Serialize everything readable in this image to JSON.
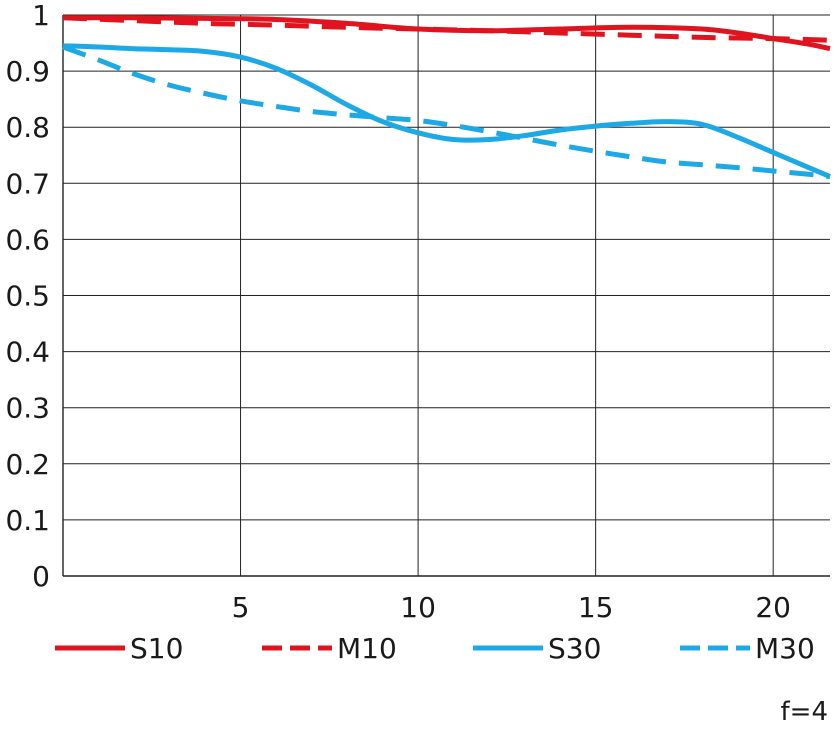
{
  "chart_data": {
    "type": "line",
    "xlim": [
      0,
      21.6
    ],
    "ylim": [
      0,
      1
    ],
    "x_ticks": [
      5,
      10,
      15,
      20
    ],
    "y_ticks": [
      0,
      0.1,
      0.2,
      0.3,
      0.4,
      0.5,
      0.6,
      0.7,
      0.8,
      0.9,
      1
    ],
    "y_tick_labels": [
      "0",
      "0.1",
      "0.2",
      "0.3",
      "0.4",
      "0.5",
      "0.6",
      "0.7",
      "0.8",
      "0.9",
      "1"
    ],
    "x_tick_labels": [
      "5",
      "10",
      "15",
      "20"
    ],
    "grid": true,
    "legend_position": "bottom",
    "note": "f=4",
    "series": [
      {
        "name": "S10",
        "color": "#e0141e",
        "dashed": false,
        "x": [
          0,
          2,
          4,
          6,
          8,
          10,
          12,
          14,
          16,
          18,
          19,
          20,
          21,
          21.6
        ],
        "y": [
          0.995,
          0.995,
          0.994,
          0.992,
          0.985,
          0.975,
          0.972,
          0.975,
          0.978,
          0.975,
          0.968,
          0.958,
          0.948,
          0.94
        ]
      },
      {
        "name": "M10",
        "color": "#e0141e",
        "dashed": true,
        "x": [
          0,
          2,
          4,
          6,
          8,
          10,
          12,
          14,
          16,
          18,
          20,
          21.6
        ],
        "y": [
          0.995,
          0.99,
          0.985,
          0.982,
          0.978,
          0.975,
          0.972,
          0.968,
          0.964,
          0.96,
          0.958,
          0.955
        ]
      },
      {
        "name": "S30",
        "color": "#1ca9e6",
        "dashed": false,
        "x": [
          0,
          1,
          2,
          3,
          4,
          5,
          6,
          7,
          8,
          9,
          10,
          11,
          12,
          13,
          14,
          15,
          16,
          17,
          18,
          19,
          20,
          21,
          21.6
        ],
        "y": [
          0.945,
          0.943,
          0.94,
          0.938,
          0.935,
          0.925,
          0.905,
          0.875,
          0.84,
          0.81,
          0.79,
          0.778,
          0.778,
          0.785,
          0.795,
          0.802,
          0.807,
          0.81,
          0.805,
          0.782,
          0.755,
          0.728,
          0.712
        ]
      },
      {
        "name": "M30",
        "color": "#1ca9e6",
        "dashed": true,
        "x": [
          0,
          1,
          2,
          3,
          4,
          5,
          6,
          7,
          8,
          9,
          10,
          11,
          12,
          13,
          14,
          15,
          16,
          17,
          18,
          19,
          20,
          21,
          21.6
        ],
        "y": [
          0.943,
          0.92,
          0.895,
          0.875,
          0.86,
          0.847,
          0.837,
          0.828,
          0.822,
          0.817,
          0.812,
          0.803,
          0.792,
          0.78,
          0.768,
          0.757,
          0.747,
          0.738,
          0.733,
          0.728,
          0.722,
          0.716,
          0.712
        ]
      }
    ]
  }
}
